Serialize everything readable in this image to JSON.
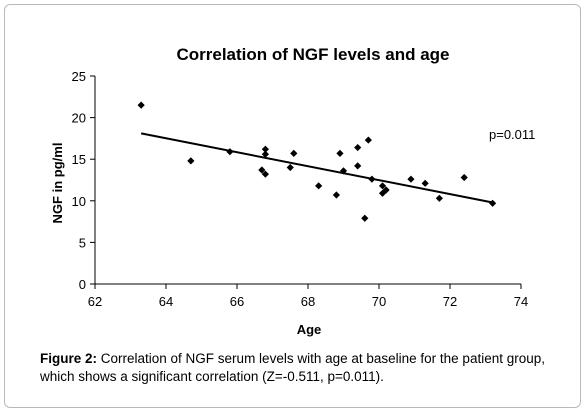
{
  "chart_data": {
    "type": "scatter",
    "title": "Correlation of NGF levels and age",
    "xlabel": "Age",
    "ylabel": "NGF in pg/ml",
    "xlim": [
      62,
      74
    ],
    "ylim": [
      0,
      25
    ],
    "xticks": [
      62,
      64,
      66,
      68,
      70,
      72,
      74
    ],
    "yticks": [
      0,
      5,
      10,
      15,
      20,
      25
    ],
    "grid": false,
    "legend": "none",
    "points": [
      {
        "x": 63.3,
        "y": 21.5
      },
      {
        "x": 64.7,
        "y": 14.8
      },
      {
        "x": 65.8,
        "y": 15.9
      },
      {
        "x": 66.7,
        "y": 13.7
      },
      {
        "x": 66.8,
        "y": 16.2
      },
      {
        "x": 66.8,
        "y": 15.6
      },
      {
        "x": 66.8,
        "y": 13.2
      },
      {
        "x": 67.5,
        "y": 14.0
      },
      {
        "x": 67.6,
        "y": 15.7
      },
      {
        "x": 68.3,
        "y": 11.8
      },
      {
        "x": 68.8,
        "y": 10.7
      },
      {
        "x": 68.9,
        "y": 15.7
      },
      {
        "x": 69.0,
        "y": 13.6
      },
      {
        "x": 69.4,
        "y": 16.4
      },
      {
        "x": 69.4,
        "y": 14.2
      },
      {
        "x": 69.6,
        "y": 7.9
      },
      {
        "x": 69.7,
        "y": 17.3
      },
      {
        "x": 69.8,
        "y": 12.6
      },
      {
        "x": 70.1,
        "y": 11.8
      },
      {
        "x": 70.1,
        "y": 10.9
      },
      {
        "x": 70.2,
        "y": 11.3
      },
      {
        "x": 70.9,
        "y": 12.6
      },
      {
        "x": 71.3,
        "y": 12.1
      },
      {
        "x": 71.7,
        "y": 10.3
      },
      {
        "x": 72.4,
        "y": 12.8
      },
      {
        "x": 73.2,
        "y": 9.7
      }
    ],
    "trendline": {
      "x": [
        63.3,
        73.2
      ],
      "y": [
        18.1,
        9.8
      ]
    },
    "annotation": "p=0.011",
    "colors": {
      "marker": "#000000",
      "line": "#000000"
    }
  },
  "caption": {
    "label": "Figure 2:",
    "text": " Correlation of NGF serum levels with age at baseline for the patient group, which shows a significant correlation (Z=-0.511, p=0.011)."
  }
}
